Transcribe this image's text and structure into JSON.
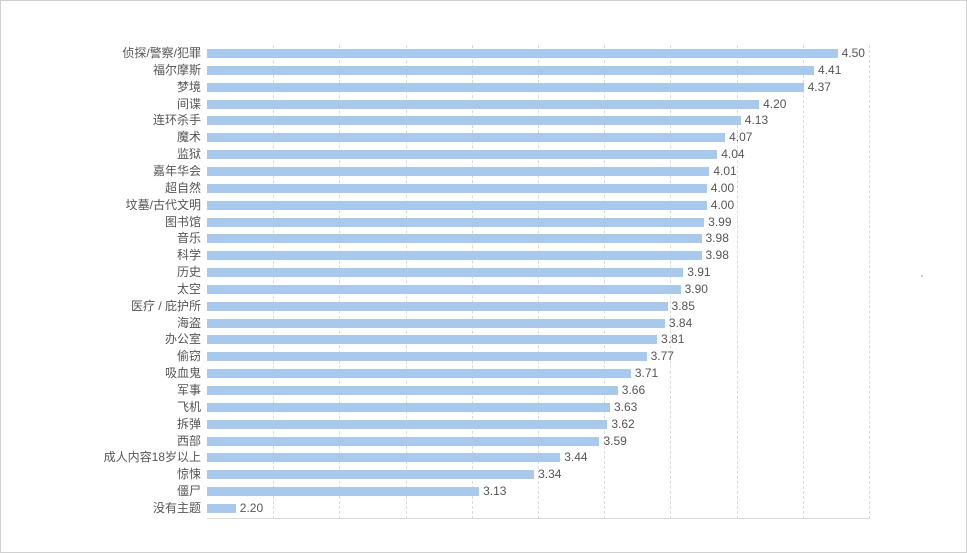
{
  "chart_data": {
    "type": "bar",
    "orientation": "horizontal",
    "title": "",
    "xlabel": "",
    "ylabel": "",
    "categories": [
      "侦探/警察/犯罪",
      "福尔摩斯",
      "梦境",
      "间谍",
      "连环杀手",
      "魔术",
      "监狱",
      "嘉年华会",
      "超自然",
      "坟墓/古代文明",
      "图书馆",
      "音乐",
      "科学",
      "历史",
      "太空",
      "医疗 / 庇护所",
      "海盗",
      "办公室",
      "偷窃",
      "吸血鬼",
      "军事",
      "飞机",
      "拆弹",
      "西部",
      "成人内容18岁以上",
      "惊悚",
      "僵尸",
      "没有主题"
    ],
    "values": [
      4.5,
      4.41,
      4.37,
      4.2,
      4.13,
      4.07,
      4.04,
      4.01,
      4.0,
      4.0,
      3.99,
      3.98,
      3.98,
      3.91,
      3.9,
      3.85,
      3.84,
      3.81,
      3.77,
      3.71,
      3.66,
      3.63,
      3.62,
      3.59,
      3.44,
      3.34,
      3.13,
      2.2
    ],
    "value_labels": [
      "4.50",
      "4.41",
      "4.37",
      "4.20",
      "4.13",
      "4.07",
      "4.04",
      "4.01",
      "4.00",
      "4.00",
      "3.99",
      "3.98",
      "3.98",
      "3.91",
      "3.90",
      "3.85",
      "3.84",
      "3.81",
      "3.77",
      "3.71",
      "3.66",
      "3.63",
      "3.62",
      "3.59",
      "3.44",
      "3.34",
      "3.13",
      "2.20"
    ],
    "xlim": [
      2.09,
      4.62
    ],
    "grid": true,
    "gridlines_count": 10,
    "legend": "none",
    "bar_color": "#a9c9ec"
  }
}
